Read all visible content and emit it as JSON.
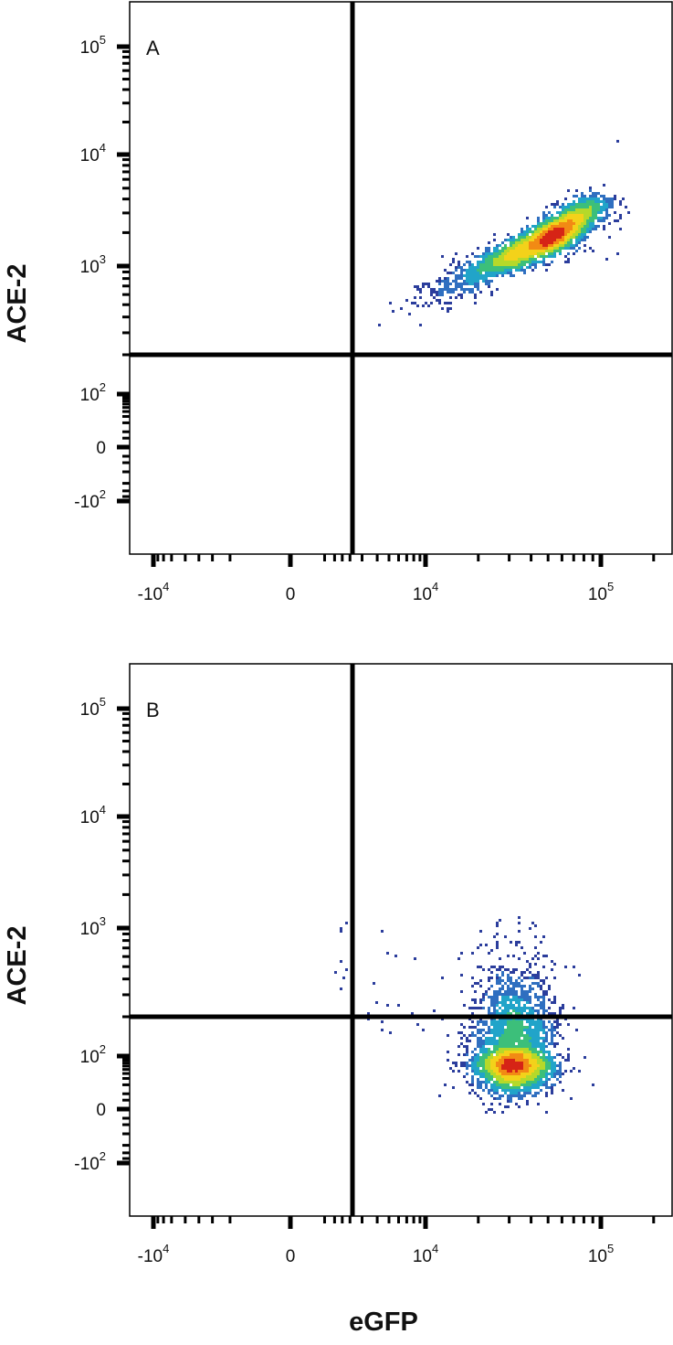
{
  "chart_data": [
    {
      "type": "scatter",
      "subtype": "flow-cytometry-density-plot",
      "panel_label": "A",
      "xlabel": "eGFP",
      "ylabel": "ACE-2",
      "x_scale": "biexponential",
      "y_scale": "biexponential",
      "x_tick_labels": [
        {
          "base": "-10",
          "exp": "4",
          "value": -10000
        },
        {
          "base": "0",
          "exp": "",
          "value": 0
        },
        {
          "base": "10",
          "exp": "4",
          "value": 10000
        },
        {
          "base": "10",
          "exp": "5",
          "value": 100000
        }
      ],
      "y_tick_labels": [
        {
          "base": "10",
          "exp": "5",
          "value": 100000
        },
        {
          "base": "10",
          "exp": "4",
          "value": 10000
        },
        {
          "base": "10",
          "exp": "3",
          "value": 1000
        },
        {
          "base": "10",
          "exp": "2",
          "value": 100
        },
        {
          "base": "0",
          "exp": "",
          "value": 0
        },
        {
          "base": "-10",
          "exp": "2",
          "value": -100
        }
      ],
      "quadrant_gate": {
        "x": 2500,
        "y": 200
      },
      "population": {
        "center": {
          "x": 50000,
          "y": 1700
        },
        "major_axis_from": {
          "x": 3500,
          "y": 250
        },
        "major_axis_to": {
          "x": 90000,
          "y": 3500
        }
      },
      "grid": false,
      "legend": "none"
    },
    {
      "type": "scatter",
      "subtype": "flow-cytometry-density-plot",
      "panel_label": "B",
      "xlabel": "eGFP",
      "ylabel": "ACE-2",
      "x_scale": "biexponential",
      "y_scale": "biexponential",
      "x_tick_labels": [
        {
          "base": "-10",
          "exp": "4",
          "value": -10000
        },
        {
          "base": "0",
          "exp": "",
          "value": 0
        },
        {
          "base": "10",
          "exp": "4",
          "value": 10000
        },
        {
          "base": "10",
          "exp": "5",
          "value": 100000
        }
      ],
      "y_tick_labels": [
        {
          "base": "10",
          "exp": "5",
          "value": 100000
        },
        {
          "base": "10",
          "exp": "4",
          "value": 10000
        },
        {
          "base": "10",
          "exp": "3",
          "value": 1000
        },
        {
          "base": "10",
          "exp": "2",
          "value": 100
        },
        {
          "base": "0",
          "exp": "",
          "value": 0
        },
        {
          "base": "-10",
          "exp": "2",
          "value": -100
        }
      ],
      "quadrant_gate": {
        "x": 2500,
        "y": 200
      },
      "population": {
        "center": {
          "x": 32000,
          "y": 90
        },
        "spread_x_from": 7000,
        "spread_x_to": 90000,
        "spread_y_from": -100,
        "spread_y_to": 220
      },
      "grid": false,
      "legend": "none"
    }
  ],
  "colors": {
    "axis": "#000000",
    "density_scale": [
      "#2b3d9c",
      "#2f6fc0",
      "#21a4c9",
      "#3cbf7a",
      "#b5d92a",
      "#f3d21a",
      "#f28a14",
      "#d62416"
    ]
  }
}
